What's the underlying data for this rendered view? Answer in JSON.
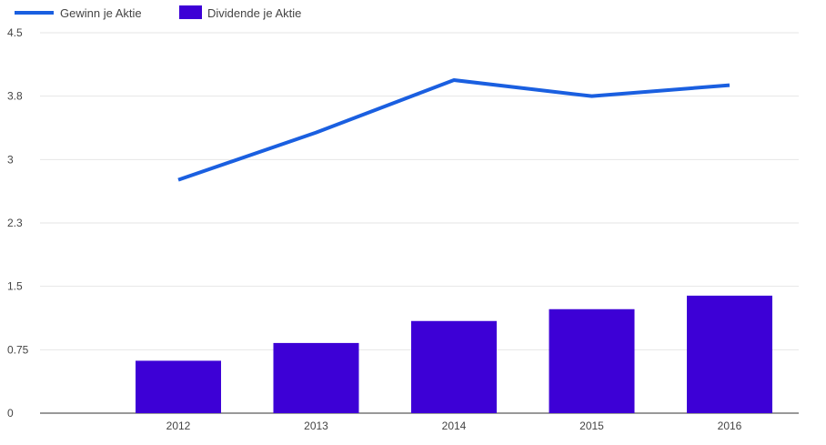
{
  "chart_data": {
    "type": "bar",
    "categories": [
      "2012",
      "2013",
      "2014",
      "2015",
      "2016"
    ],
    "series": [
      {
        "name": "Gewinn je Aktie",
        "type": "line",
        "color": "#1a5fe0",
        "values": [
          2.76,
          3.32,
          3.94,
          3.75,
          3.88
        ]
      },
      {
        "name": "Dividende je Aktie",
        "type": "bar",
        "color": "#3d00d6",
        "values": [
          0.62,
          0.83,
          1.09,
          1.23,
          1.39
        ]
      }
    ],
    "yticks": [
      "0",
      "0.75",
      "1.5",
      "2.3",
      "3",
      "3.8",
      "4.5"
    ],
    "ylim": [
      0,
      4.5
    ],
    "grid": true,
    "legend_position": "top-left"
  }
}
